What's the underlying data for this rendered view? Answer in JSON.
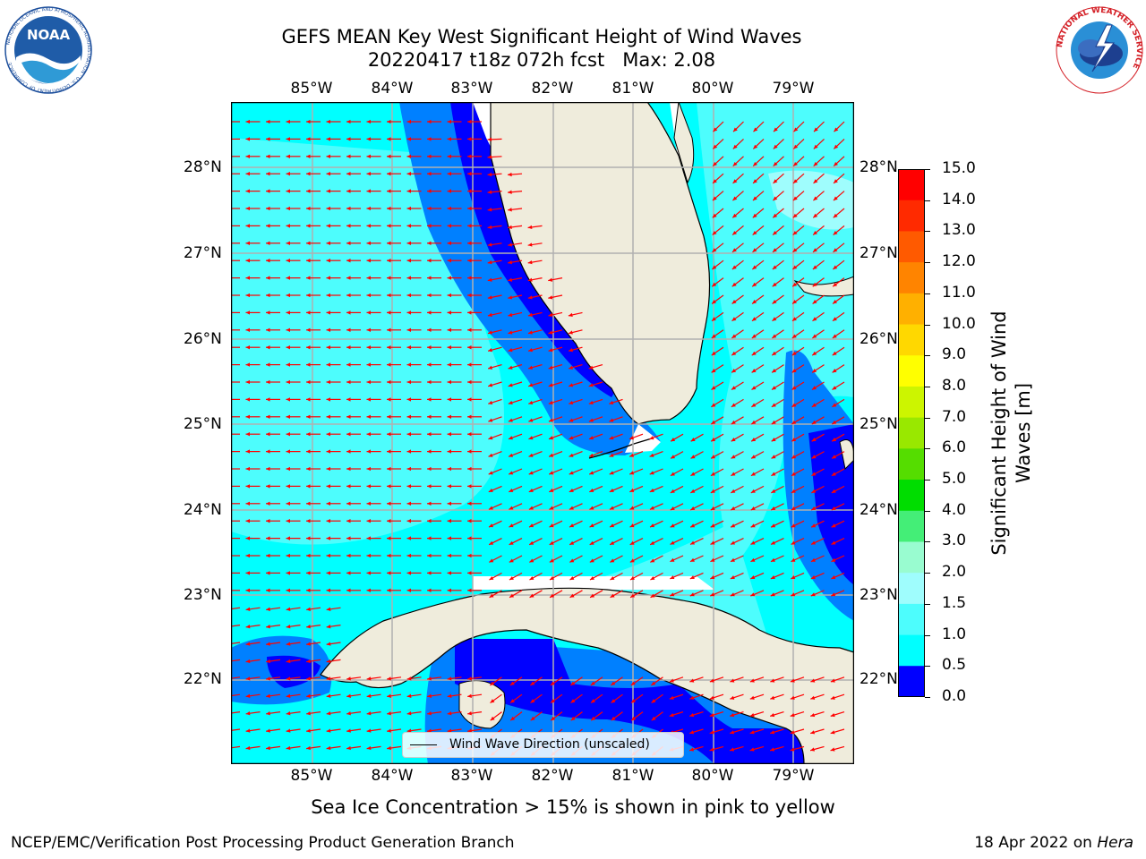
{
  "title": {
    "line1": "GEFS MEAN Key West Significant Height of Wind Waves",
    "line2": "20220417 t18z 072h fcst   Max: 2.08"
  },
  "logos": {
    "left": {
      "name": "noaa-logo",
      "text": "NOAA",
      "ring_text": "NATIONAL OCEANIC AND ATMOSPHERIC ADMINISTRATION · U.S. DEPARTMENT OF COMMERCE"
    },
    "right": {
      "name": "nws-logo",
      "ring_text": "NATIONAL WEATHER SERVICE"
    }
  },
  "map": {
    "lon_labels": [
      "85°W",
      "84°W",
      "83°W",
      "82°W",
      "81°W",
      "80°W",
      "79°W"
    ],
    "lat_labels": [
      "28°N",
      "27°N",
      "26°N",
      "25°N",
      "24°N",
      "23°N",
      "22°N"
    ],
    "colors": {
      "land": "#efecdc",
      "deep_blue": "#0000ff",
      "medium_blue": "#0080ff",
      "cyan": "#00ffff",
      "light_cyan": "#4dfdfd",
      "pale_cyan": "#9ffdfd",
      "arrow": "#ff0000",
      "grid": "#b0b0b0"
    },
    "legend_label": "Wind Wave Direction (unscaled)"
  },
  "colorbar": {
    "title_line1": "Significant Height of Wind",
    "title_line2": "Waves [m]",
    "ticks": [
      "15.0",
      "14.0",
      "13.0",
      "12.0",
      "11.0",
      "10.0",
      "9.0",
      "8.0",
      "7.0",
      "6.0",
      "5.0",
      "4.0",
      "3.0",
      "2.0",
      "1.5",
      "1.0",
      "0.5",
      "0.0"
    ],
    "colors": [
      "#ff0000",
      "#ff2000",
      "#ff5500",
      "#ff8000",
      "#ffaa00",
      "#ffd000",
      "#ffff00",
      "#ddf500",
      "#bbee00",
      "#88dd00",
      "#44cc00",
      "#00dd00",
      "#33ee77",
      "#66ffaa",
      "#9ffdfd",
      "#4dfdfd",
      "#00ffff",
      "#0080ff",
      "#0000ff"
    ]
  },
  "footer": {
    "note": "Sea Ice Concentration > 15% is shown in pink to yellow",
    "credit": "NCEP/EMC/Verification Post Processing Product Generation Branch",
    "date": "18 Apr 2022 on ",
    "machine": "Hera"
  }
}
